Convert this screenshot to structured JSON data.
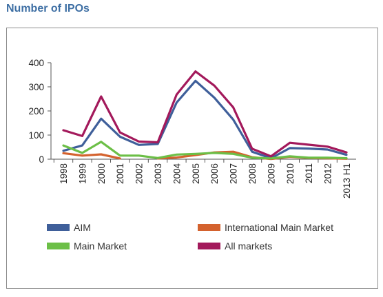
{
  "chart_data": {
    "type": "line",
    "title": "Number of IPOs",
    "xlabel": "",
    "ylabel": "",
    "ylim": [
      0,
      400
    ],
    "yticks": [
      0,
      100,
      200,
      300,
      400
    ],
    "categories": [
      "1998",
      "1999",
      "2000",
      "2001",
      "2002",
      "2003",
      "2004",
      "2005",
      "2006",
      "2007",
      "2008",
      "2009",
      "2010",
      "2011",
      "2012",
      "2013 H1"
    ],
    "grid": false,
    "legend_position": "bottom",
    "series": [
      {
        "name": "AIM",
        "color": "#3f5f9a",
        "values": [
          35,
          57,
          168,
          93,
          59,
          63,
          235,
          325,
          255,
          164,
          31,
          4,
          46,
          44,
          40,
          18
        ]
      },
      {
        "name": "International Main Market",
        "color": "#d4622e",
        "values": [
          25,
          15,
          20,
          3,
          null,
          3,
          7,
          17,
          28,
          31,
          8,
          1,
          10,
          5,
          4,
          2
        ]
      },
      {
        "name": "Main Market",
        "color": "#6cbf47",
        "values": [
          57,
          26,
          72,
          15,
          15,
          5,
          19,
          22,
          26,
          22,
          6,
          3,
          12,
          6,
          6,
          4
        ]
      },
      {
        "name": "All markets",
        "color": "#a3195b",
        "values": [
          120,
          96,
          260,
          111,
          73,
          70,
          268,
          364,
          305,
          215,
          43,
          12,
          68,
          60,
          52,
          28
        ]
      }
    ]
  }
}
